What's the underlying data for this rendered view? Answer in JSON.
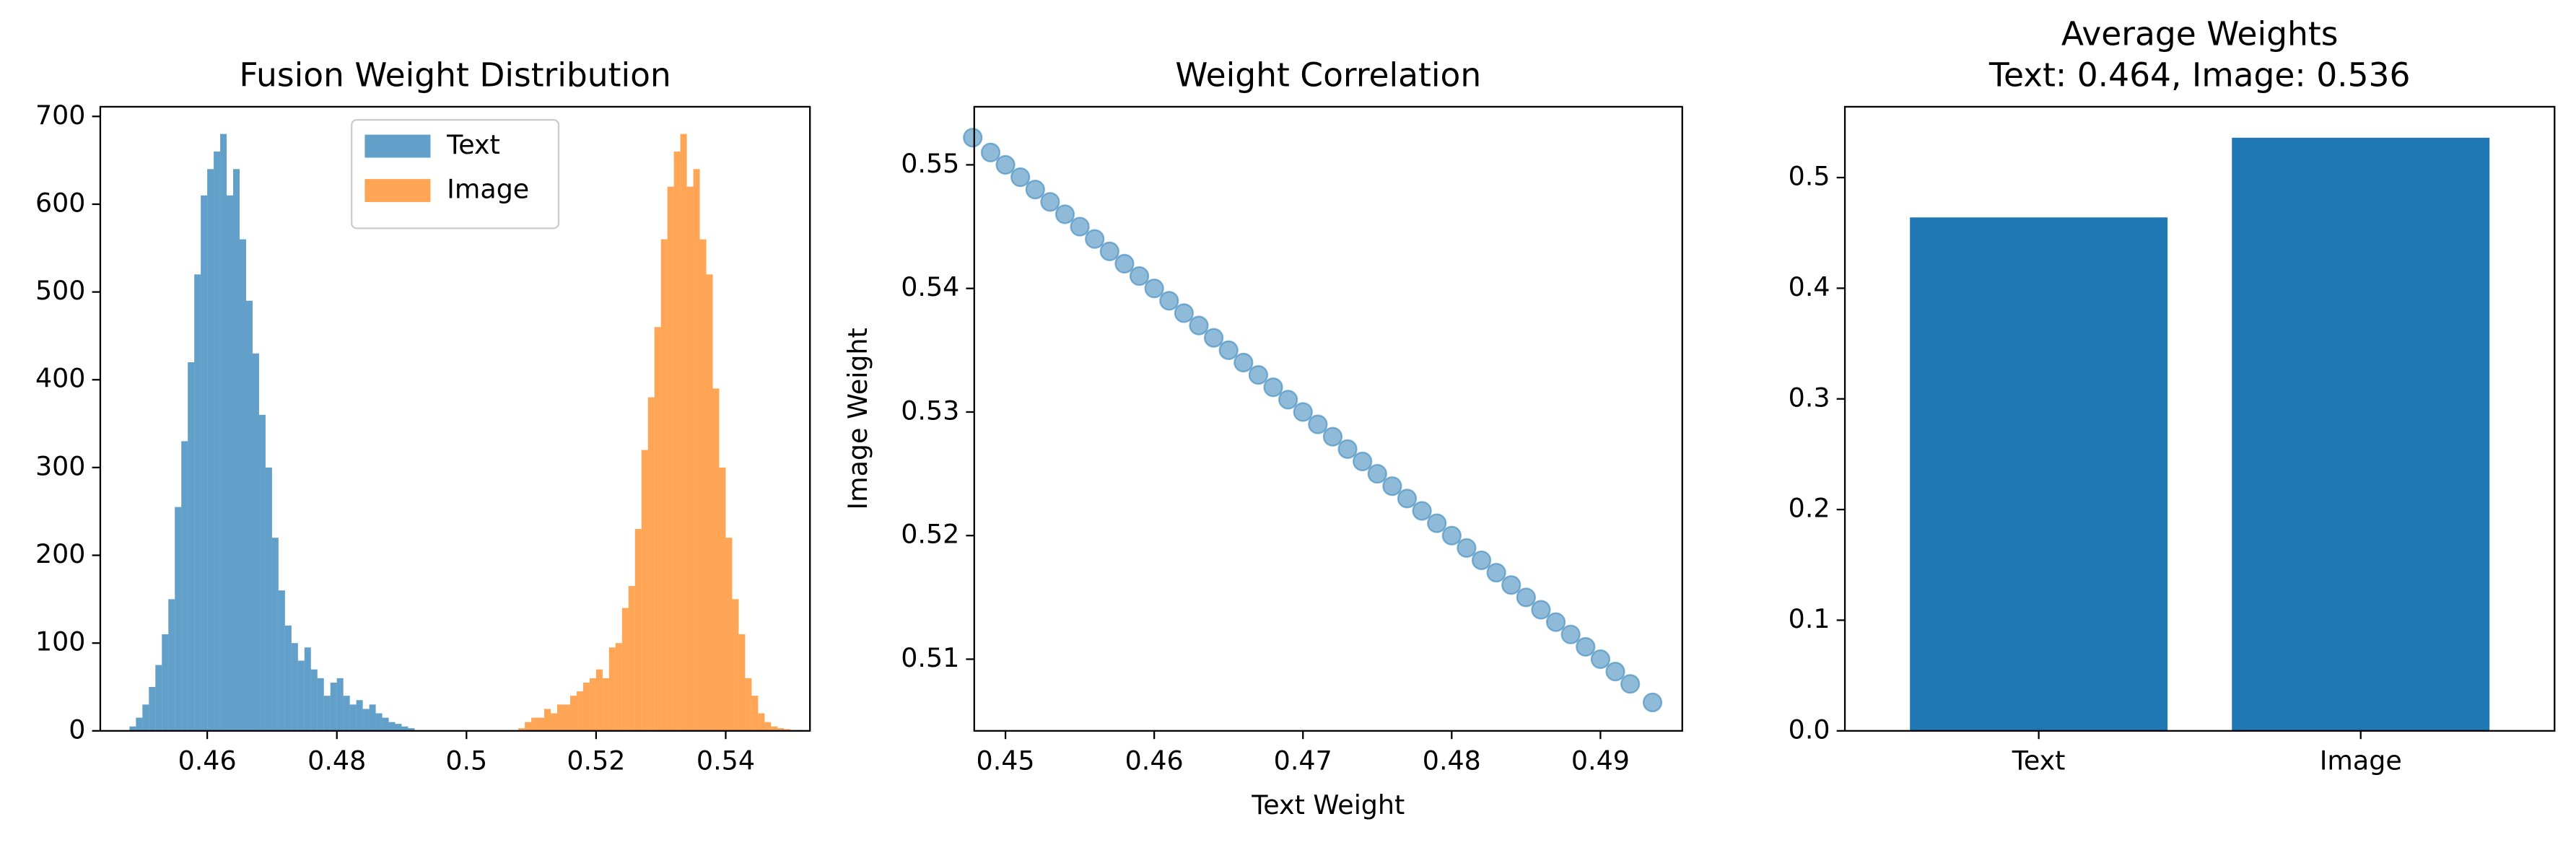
{
  "chart_data": [
    {
      "type": "histogram",
      "title": "Fusion Weight Distribution",
      "legend": "upper center",
      "alpha": 0.7,
      "xlim": [
        0.4435,
        0.553
      ],
      "xticks": [
        0.46,
        0.48,
        0.5,
        0.52,
        0.54
      ],
      "ylim": [
        0,
        711
      ],
      "yticks": [
        0,
        100,
        200,
        300,
        400,
        500,
        600,
        700
      ],
      "series": [
        {
          "name": "Text",
          "color": "#1f77b4",
          "bins": [
            0.448,
            0.449,
            0.45,
            0.451,
            0.452,
            0.453,
            0.454,
            0.455,
            0.456,
            0.457,
            0.458,
            0.459,
            0.46,
            0.461,
            0.462,
            0.463,
            0.464,
            0.465,
            0.466,
            0.467,
            0.468,
            0.469,
            0.47,
            0.471,
            0.472,
            0.473,
            0.474,
            0.475,
            0.476,
            0.477,
            0.478,
            0.479,
            0.48,
            0.481,
            0.482,
            0.483,
            0.484,
            0.485,
            0.486,
            0.487,
            0.488,
            0.489,
            0.49,
            0.491,
            0.492
          ],
          "values": [
            5,
            15,
            30,
            50,
            75,
            110,
            150,
            255,
            330,
            420,
            520,
            610,
            640,
            660,
            680,
            610,
            640,
            560,
            490,
            430,
            360,
            300,
            220,
            160,
            120,
            100,
            80,
            95,
            70,
            60,
            40,
            55,
            60,
            40,
            30,
            35,
            25,
            30,
            20,
            15,
            10,
            8,
            5,
            3
          ]
        },
        {
          "name": "Image",
          "color": "#ff7f0e",
          "bins": [
            0.508,
            0.509,
            0.51,
            0.511,
            0.512,
            0.513,
            0.514,
            0.515,
            0.516,
            0.517,
            0.518,
            0.519,
            0.52,
            0.521,
            0.522,
            0.523,
            0.524,
            0.525,
            0.526,
            0.527,
            0.528,
            0.529,
            0.53,
            0.531,
            0.532,
            0.533,
            0.534,
            0.535,
            0.536,
            0.537,
            0.538,
            0.539,
            0.54,
            0.541,
            0.542,
            0.543,
            0.544,
            0.545,
            0.546,
            0.547,
            0.548,
            0.549,
            0.55,
            0.551,
            0.552
          ],
          "values": [
            3,
            10,
            15,
            15,
            25,
            20,
            30,
            30,
            40,
            45,
            55,
            60,
            70,
            60,
            95,
            100,
            140,
            165,
            230,
            320,
            380,
            460,
            560,
            620,
            660,
            680,
            620,
            640,
            560,
            520,
            390,
            300,
            220,
            150,
            110,
            60,
            40,
            20,
            10,
            5,
            3,
            2,
            1,
            1
          ]
        }
      ]
    },
    {
      "type": "scatter",
      "title": "Weight Correlation",
      "xlabel": "Text Weight",
      "ylabel": "Image Weight",
      "color": "#1f77b4",
      "alpha": 0.5,
      "xlim": [
        0.4479,
        0.4955
      ],
      "xticks": [
        0.45,
        0.46,
        0.47,
        0.48,
        0.49
      ],
      "ylim": [
        0.5042,
        0.5547
      ],
      "yticks": [
        0.51,
        0.52,
        0.53,
        0.54,
        0.55
      ],
      "x": [
        0.4478,
        0.449,
        0.45,
        0.451,
        0.452,
        0.453,
        0.454,
        0.455,
        0.456,
        0.457,
        0.458,
        0.459,
        0.46,
        0.461,
        0.462,
        0.463,
        0.464,
        0.465,
        0.466,
        0.467,
        0.468,
        0.469,
        0.47,
        0.471,
        0.472,
        0.473,
        0.474,
        0.475,
        0.476,
        0.477,
        0.478,
        0.479,
        0.48,
        0.481,
        0.482,
        0.483,
        0.484,
        0.485,
        0.486,
        0.487,
        0.488,
        0.489,
        0.49,
        0.491,
        0.492,
        0.4935
      ],
      "values": [
        0.5522,
        0.551,
        0.55,
        0.549,
        0.548,
        0.547,
        0.546,
        0.545,
        0.544,
        0.543,
        0.542,
        0.541,
        0.54,
        0.539,
        0.538,
        0.537,
        0.536,
        0.535,
        0.534,
        0.533,
        0.532,
        0.531,
        0.53,
        0.529,
        0.528,
        0.527,
        0.526,
        0.525,
        0.524,
        0.523,
        0.522,
        0.521,
        0.52,
        0.519,
        0.518,
        0.517,
        0.516,
        0.515,
        0.514,
        0.513,
        0.512,
        0.511,
        0.51,
        0.509,
        0.508,
        0.5065
      ]
    },
    {
      "type": "bar",
      "title": "Average Weights",
      "subtitle": "Text: 0.464, Image: 0.536",
      "color": "#1f77b4",
      "categories": [
        "Text",
        "Image"
      ],
      "values": [
        0.464,
        0.536
      ],
      "ylim": [
        0,
        0.564
      ],
      "yticks": [
        {
          "value": 0,
          "label": "0.0"
        },
        0.1,
        0.2,
        0.3,
        0.4,
        0.5
      ]
    }
  ]
}
